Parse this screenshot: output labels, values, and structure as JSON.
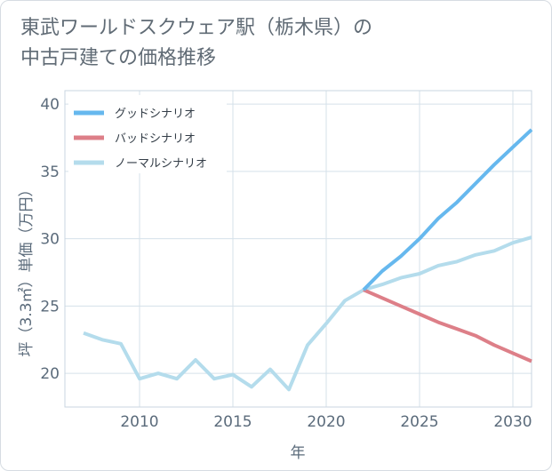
{
  "title": {
    "line1": "東武ワールドスクウェア駅（栃木県）の",
    "line2": "中古戸建ての価格推移"
  },
  "chart_data": {
    "type": "line",
    "xlabel": "年",
    "ylabel": "坪（3.3㎡）単価（万円）",
    "xlim": [
      2006,
      2031
    ],
    "ylim": [
      17.5,
      41
    ],
    "xticks": [
      2010,
      2015,
      2020,
      2025,
      2030
    ],
    "yticks": [
      20,
      25,
      30,
      35,
      40
    ],
    "grid": true,
    "legend_position": "top-left",
    "series": [
      {
        "name": "グッドシナリオ",
        "color": "#66b8ee",
        "x": [
          2022,
          2023,
          2024,
          2025,
          2026,
          2027,
          2028,
          2029,
          2030,
          2031
        ],
        "y": [
          26.2,
          27.6,
          28.7,
          30.0,
          31.5,
          32.7,
          34.1,
          35.5,
          36.8,
          38.1
        ]
      },
      {
        "name": "バッドシナリオ",
        "color": "#dd7f88",
        "x": [
          2022,
          2023,
          2024,
          2025,
          2026,
          2027,
          2028,
          2029,
          2030,
          2031
        ],
        "y": [
          26.2,
          25.6,
          25.0,
          24.4,
          23.8,
          23.3,
          22.8,
          22.1,
          21.5,
          20.9
        ]
      },
      {
        "name": "ノーマルシナリオ",
        "color": "#b4dcec",
        "x": [
          2007,
          2008,
          2009,
          2010,
          2011,
          2012,
          2013,
          2014,
          2015,
          2016,
          2017,
          2018,
          2019,
          2020,
          2021,
          2022,
          2023,
          2024,
          2025,
          2026,
          2027,
          2028,
          2029,
          2030,
          2031
        ],
        "y": [
          23.0,
          22.5,
          22.2,
          19.6,
          20.0,
          19.6,
          21.0,
          19.6,
          19.9,
          19.0,
          20.3,
          18.8,
          22.1,
          23.7,
          25.4,
          26.2,
          26.6,
          27.1,
          27.4,
          28.0,
          28.3,
          28.8,
          29.1,
          29.7,
          30.1
        ]
      }
    ]
  }
}
